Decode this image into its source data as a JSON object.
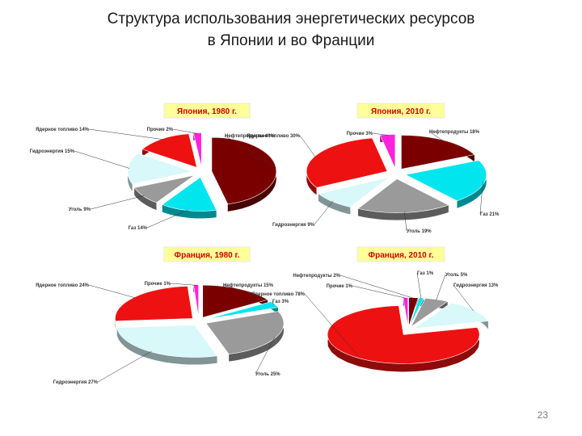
{
  "slide": {
    "title_line1": "Структура использования энергетических ресурсов",
    "title_line2": "в Японии и во Франции",
    "page_number": "23"
  },
  "colors": {
    "Нефтепродукты": "#7a0000",
    "Газ": "#00e5ee",
    "Уголь": "#9a9a9a",
    "Гидроэнергия": "#d8f8fa",
    "Ядерное топливо": "#ee1111",
    "Прочие": "#ff22dd"
  },
  "chart_data": [
    {
      "type": "pie",
      "title": "Япония, 1980 г.",
      "slices": [
        {
          "category": "Нефтепродукты",
          "value": 46,
          "label": "Нефтепродукты 46%"
        },
        {
          "category": "Газ",
          "value": 14,
          "label": "Газ 14%"
        },
        {
          "category": "Уголь",
          "value": 9,
          "label": "Уголь 9%"
        },
        {
          "category": "Гидроэнергия",
          "value": 15,
          "label": "Гидроэнергия 15%"
        },
        {
          "category": "Ядерное топливо",
          "value": 14,
          "label": "Ядерное топливо 14%"
        },
        {
          "category": "Прочие",
          "value": 2,
          "label": "Прочие 2%"
        }
      ]
    },
    {
      "type": "pie",
      "title": "Япония, 2010 г.",
      "slices": [
        {
          "category": "Нефтепродукты",
          "value": 18,
          "label": "Нефтепродукты 18%"
        },
        {
          "category": "Газ",
          "value": 21,
          "label": "Газ 21%"
        },
        {
          "category": "Уголь",
          "value": 19,
          "label": "Уголь 19%"
        },
        {
          "category": "Гидроэнергия",
          "value": 9,
          "label": "Гидроэнергия 9%"
        },
        {
          "category": "Ядерное топливо",
          "value": 30,
          "label": "Ядерное топливо 30%"
        },
        {
          "category": "Прочие",
          "value": 3,
          "label": "Прочие 3%"
        }
      ]
    },
    {
      "type": "pie",
      "title": "Франция, 1980 г.",
      "slices": [
        {
          "category": "Нефтепродукты",
          "value": 15,
          "label": "Нефтепродукты 15%"
        },
        {
          "category": "Газ",
          "value": 3,
          "label": "Газ 3%"
        },
        {
          "category": "Уголь",
          "value": 25,
          "label": "Уголь 25%"
        },
        {
          "category": "Гидроэнергия",
          "value": 27,
          "label": "Гидроэнергия 27%"
        },
        {
          "category": "Ядерное топливо",
          "value": 24,
          "label": "Ядерное топливо 24%"
        },
        {
          "category": "Прочие",
          "value": 1,
          "label": "Прочие 1%"
        }
      ]
    },
    {
      "type": "pie",
      "title": "Франция, 2010 г.",
      "slices": [
        {
          "category": "Нефтепродукты",
          "value": 2,
          "label": "Нефтепродукты 2%"
        },
        {
          "category": "Газ",
          "value": 1,
          "label": "Газ 1%"
        },
        {
          "category": "Уголь",
          "value": 5,
          "label": "Уголь 5%"
        },
        {
          "category": "Гидроэнергия",
          "value": 13,
          "label": "Гидроэнергия 13%"
        },
        {
          "category": "Ядерное топливо",
          "value": 78,
          "label": "Ядерное топливо 78%"
        },
        {
          "category": "Прочие",
          "value": 1,
          "label": "Прочие 1%"
        }
      ]
    }
  ]
}
